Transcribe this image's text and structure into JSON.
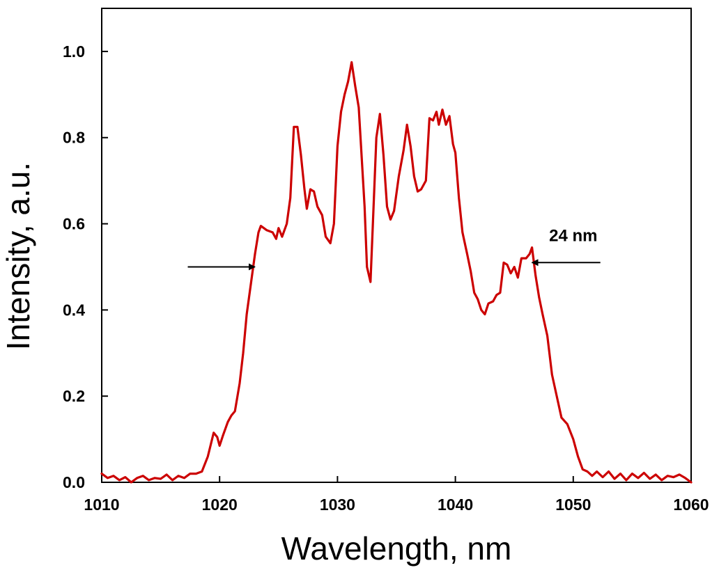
{
  "chart_data": {
    "type": "line",
    "title": "",
    "xlabel": "Wavelength, nm",
    "ylabel": "Intensity, a.u.",
    "xlim": [
      1010,
      1060
    ],
    "ylim": [
      0.0,
      1.1
    ],
    "grid": false,
    "x_ticks": [
      1010,
      1020,
      1030,
      1040,
      1050,
      1060
    ],
    "x_tick_labels": [
      "1010",
      "1020",
      "1030",
      "1040",
      "1050",
      "1060"
    ],
    "y_ticks": [
      0.0,
      0.2,
      0.4,
      0.6,
      0.8,
      1.0
    ],
    "y_tick_labels": [
      "0.0",
      "0.2",
      "0.4",
      "0.6",
      "0.8",
      "1.0"
    ],
    "series": [
      {
        "name": "spectrum",
        "color": "#cc0000",
        "points": [
          [
            1010.0,
            0.02
          ],
          [
            1010.5,
            0.01
          ],
          [
            1011.0,
            0.015
          ],
          [
            1011.5,
            0.005
          ],
          [
            1012.0,
            0.012
          ],
          [
            1012.5,
            0.0
          ],
          [
            1013.0,
            0.01
          ],
          [
            1013.5,
            0.015
          ],
          [
            1014.0,
            0.005
          ],
          [
            1014.5,
            0.01
          ],
          [
            1015.0,
            0.008
          ],
          [
            1015.5,
            0.018
          ],
          [
            1016.0,
            0.005
          ],
          [
            1016.5,
            0.015
          ],
          [
            1017.0,
            0.01
          ],
          [
            1017.5,
            0.02
          ],
          [
            1018.0,
            0.02
          ],
          [
            1018.5,
            0.025
          ],
          [
            1019.0,
            0.06
          ],
          [
            1019.5,
            0.115
          ],
          [
            1019.8,
            0.105
          ],
          [
            1020.0,
            0.085
          ],
          [
            1020.3,
            0.11
          ],
          [
            1020.7,
            0.14
          ],
          [
            1021.0,
            0.155
          ],
          [
            1021.3,
            0.165
          ],
          [
            1021.7,
            0.23
          ],
          [
            1022.0,
            0.3
          ],
          [
            1022.3,
            0.39
          ],
          [
            1022.7,
            0.47
          ],
          [
            1023.0,
            0.53
          ],
          [
            1023.3,
            0.58
          ],
          [
            1023.5,
            0.595
          ],
          [
            1024.0,
            0.585
          ],
          [
            1024.5,
            0.58
          ],
          [
            1024.8,
            0.565
          ],
          [
            1025.0,
            0.59
          ],
          [
            1025.3,
            0.57
          ],
          [
            1025.7,
            0.6
          ],
          [
            1026.0,
            0.66
          ],
          [
            1026.3,
            0.825
          ],
          [
            1026.6,
            0.825
          ],
          [
            1026.9,
            0.76
          ],
          [
            1027.2,
            0.68
          ],
          [
            1027.4,
            0.635
          ],
          [
            1027.7,
            0.68
          ],
          [
            1028.0,
            0.675
          ],
          [
            1028.3,
            0.64
          ],
          [
            1028.7,
            0.62
          ],
          [
            1029.0,
            0.57
          ],
          [
            1029.4,
            0.555
          ],
          [
            1029.7,
            0.6
          ],
          [
            1030.0,
            0.78
          ],
          [
            1030.3,
            0.86
          ],
          [
            1030.6,
            0.9
          ],
          [
            1030.9,
            0.93
          ],
          [
            1031.2,
            0.975
          ],
          [
            1031.5,
            0.92
          ],
          [
            1031.8,
            0.87
          ],
          [
            1032.0,
            0.78
          ],
          [
            1032.3,
            0.64
          ],
          [
            1032.5,
            0.5
          ],
          [
            1032.8,
            0.465
          ],
          [
            1033.0,
            0.6
          ],
          [
            1033.3,
            0.8
          ],
          [
            1033.6,
            0.855
          ],
          [
            1033.9,
            0.76
          ],
          [
            1034.2,
            0.64
          ],
          [
            1034.5,
            0.61
          ],
          [
            1034.8,
            0.63
          ],
          [
            1035.2,
            0.71
          ],
          [
            1035.6,
            0.77
          ],
          [
            1035.9,
            0.83
          ],
          [
            1036.2,
            0.78
          ],
          [
            1036.5,
            0.71
          ],
          [
            1036.8,
            0.675
          ],
          [
            1037.1,
            0.68
          ],
          [
            1037.5,
            0.7
          ],
          [
            1037.8,
            0.845
          ],
          [
            1038.1,
            0.84
          ],
          [
            1038.4,
            0.86
          ],
          [
            1038.6,
            0.83
          ],
          [
            1038.9,
            0.865
          ],
          [
            1039.2,
            0.83
          ],
          [
            1039.5,
            0.85
          ],
          [
            1039.8,
            0.785
          ],
          [
            1040.0,
            0.765
          ],
          [
            1040.3,
            0.66
          ],
          [
            1040.6,
            0.58
          ],
          [
            1041.0,
            0.53
          ],
          [
            1041.3,
            0.49
          ],
          [
            1041.6,
            0.44
          ],
          [
            1041.9,
            0.425
          ],
          [
            1042.2,
            0.4
          ],
          [
            1042.5,
            0.39
          ],
          [
            1042.8,
            0.415
          ],
          [
            1043.2,
            0.42
          ],
          [
            1043.5,
            0.435
          ],
          [
            1043.8,
            0.44
          ],
          [
            1044.1,
            0.51
          ],
          [
            1044.4,
            0.505
          ],
          [
            1044.7,
            0.485
          ],
          [
            1045.0,
            0.5
          ],
          [
            1045.3,
            0.475
          ],
          [
            1045.6,
            0.52
          ],
          [
            1046.0,
            0.52
          ],
          [
            1046.3,
            0.53
          ],
          [
            1046.5,
            0.545
          ],
          [
            1046.8,
            0.48
          ],
          [
            1047.1,
            0.43
          ],
          [
            1047.4,
            0.39
          ],
          [
            1047.8,
            0.34
          ],
          [
            1048.2,
            0.25
          ],
          [
            1048.6,
            0.2
          ],
          [
            1049.0,
            0.15
          ],
          [
            1049.5,
            0.135
          ],
          [
            1050.0,
            0.1
          ],
          [
            1050.4,
            0.06
          ],
          [
            1050.8,
            0.03
          ],
          [
            1051.2,
            0.025
          ],
          [
            1051.6,
            0.015
          ],
          [
            1052.0,
            0.025
          ],
          [
            1052.5,
            0.012
          ],
          [
            1053.0,
            0.025
          ],
          [
            1053.5,
            0.008
          ],
          [
            1054.0,
            0.02
          ],
          [
            1054.5,
            0.005
          ],
          [
            1055.0,
            0.02
          ],
          [
            1055.5,
            0.01
          ],
          [
            1056.0,
            0.022
          ],
          [
            1056.5,
            0.008
          ],
          [
            1057.0,
            0.018
          ],
          [
            1057.5,
            0.005
          ],
          [
            1058.0,
            0.015
          ],
          [
            1058.5,
            0.012
          ],
          [
            1059.0,
            0.018
          ],
          [
            1059.5,
            0.01
          ],
          [
            1060.0,
            0.0
          ]
        ]
      }
    ],
    "annotations": [
      {
        "type": "arrow",
        "from": [
          1017.3,
          0.5
        ],
        "to": [
          1023.0,
          0.5
        ],
        "direction": "right"
      },
      {
        "type": "arrow",
        "from": [
          1052.3,
          0.51
        ],
        "to": [
          1046.5,
          0.51
        ],
        "direction": "left"
      },
      {
        "type": "text",
        "text": "24 nm",
        "at": [
          1050.0,
          0.56
        ]
      }
    ]
  }
}
